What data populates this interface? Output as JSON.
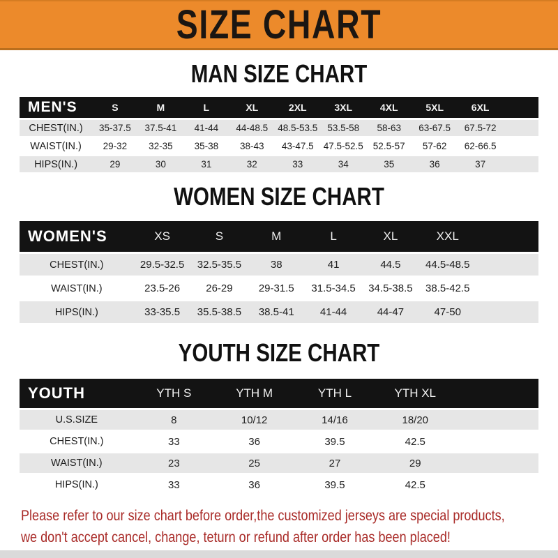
{
  "banner": {
    "text": "SIZE CHART",
    "bg_color": "#ec8a2b",
    "text_color": "#1b1612"
  },
  "sections": [
    {
      "heading": "MAN SIZE CHART",
      "corner_label": "MEN'S",
      "columns": [
        "S",
        "M",
        "L",
        "XL",
        "2XL",
        "3XL",
        "4XL",
        "5XL",
        "6XL"
      ],
      "rows": [
        {
          "label": "CHEST(IN.)",
          "values": [
            "35-37.5",
            "37.5-41",
            "41-44",
            "44-48.5",
            "48.5-53.5",
            "53.5-58",
            "58-63",
            "63-67.5",
            "67.5-72"
          ]
        },
        {
          "label": "WAIST(IN.)",
          "values": [
            "29-32",
            "32-35",
            "35-38",
            "38-43",
            "43-47.5",
            "47.5-52.5",
            "52.5-57",
            "57-62",
            "62-66.5"
          ]
        },
        {
          "label": "HIPS(IN.)",
          "values": [
            "29",
            "30",
            "31",
            "32",
            "33",
            "34",
            "35",
            "36",
            "37"
          ]
        }
      ]
    },
    {
      "heading": "WOMEN SIZE CHART",
      "corner_label": "WOMEN'S",
      "columns": [
        "XS",
        "S",
        "M",
        "L",
        "XL",
        "XXL"
      ],
      "rows": [
        {
          "label": "CHEST(IN.)",
          "values": [
            "29.5-32.5",
            "32.5-35.5",
            "38",
            "41",
            "44.5",
            "44.5-48.5"
          ]
        },
        {
          "label": "WAIST(IN.)",
          "values": [
            "23.5-26",
            "26-29",
            "29-31.5",
            "31.5-34.5",
            "34.5-38.5",
            "38.5-42.5"
          ]
        },
        {
          "label": "HIPS(IN.)",
          "values": [
            "33-35.5",
            "35.5-38.5",
            "38.5-41",
            "41-44",
            "44-47",
            "47-50"
          ]
        }
      ]
    },
    {
      "heading": "YOUTH SIZE CHART",
      "corner_label": "YOUTH",
      "columns": [
        "YTH S",
        "YTH M",
        "YTH L",
        "YTH XL"
      ],
      "rows": [
        {
          "label": "U.S.SIZE",
          "values": [
            "8",
            "10/12",
            "14/16",
            "18/20"
          ]
        },
        {
          "label": "CHEST(IN.)",
          "values": [
            "33",
            "36",
            "39.5",
            "42.5"
          ]
        },
        {
          "label": "WAIST(IN.)",
          "values": [
            "23",
            "25",
            "27",
            "29"
          ]
        },
        {
          "label": "HIPS(IN.)",
          "values": [
            "33",
            "36",
            "39.5",
            "42.5"
          ]
        }
      ]
    }
  ],
  "footer": {
    "line1": "Please refer to our size chart before order,the customized jerseys are special products,",
    "line2": "we don't accept cancel, change, teturn or refund after order has been placed!",
    "text_color": "#a92b28"
  },
  "colors": {
    "banner_orange": "#ec8a2b",
    "header_bar_black": "#131313",
    "shaded_row_gray": "#e6e6e6",
    "notice_red": "#a92b28"
  }
}
